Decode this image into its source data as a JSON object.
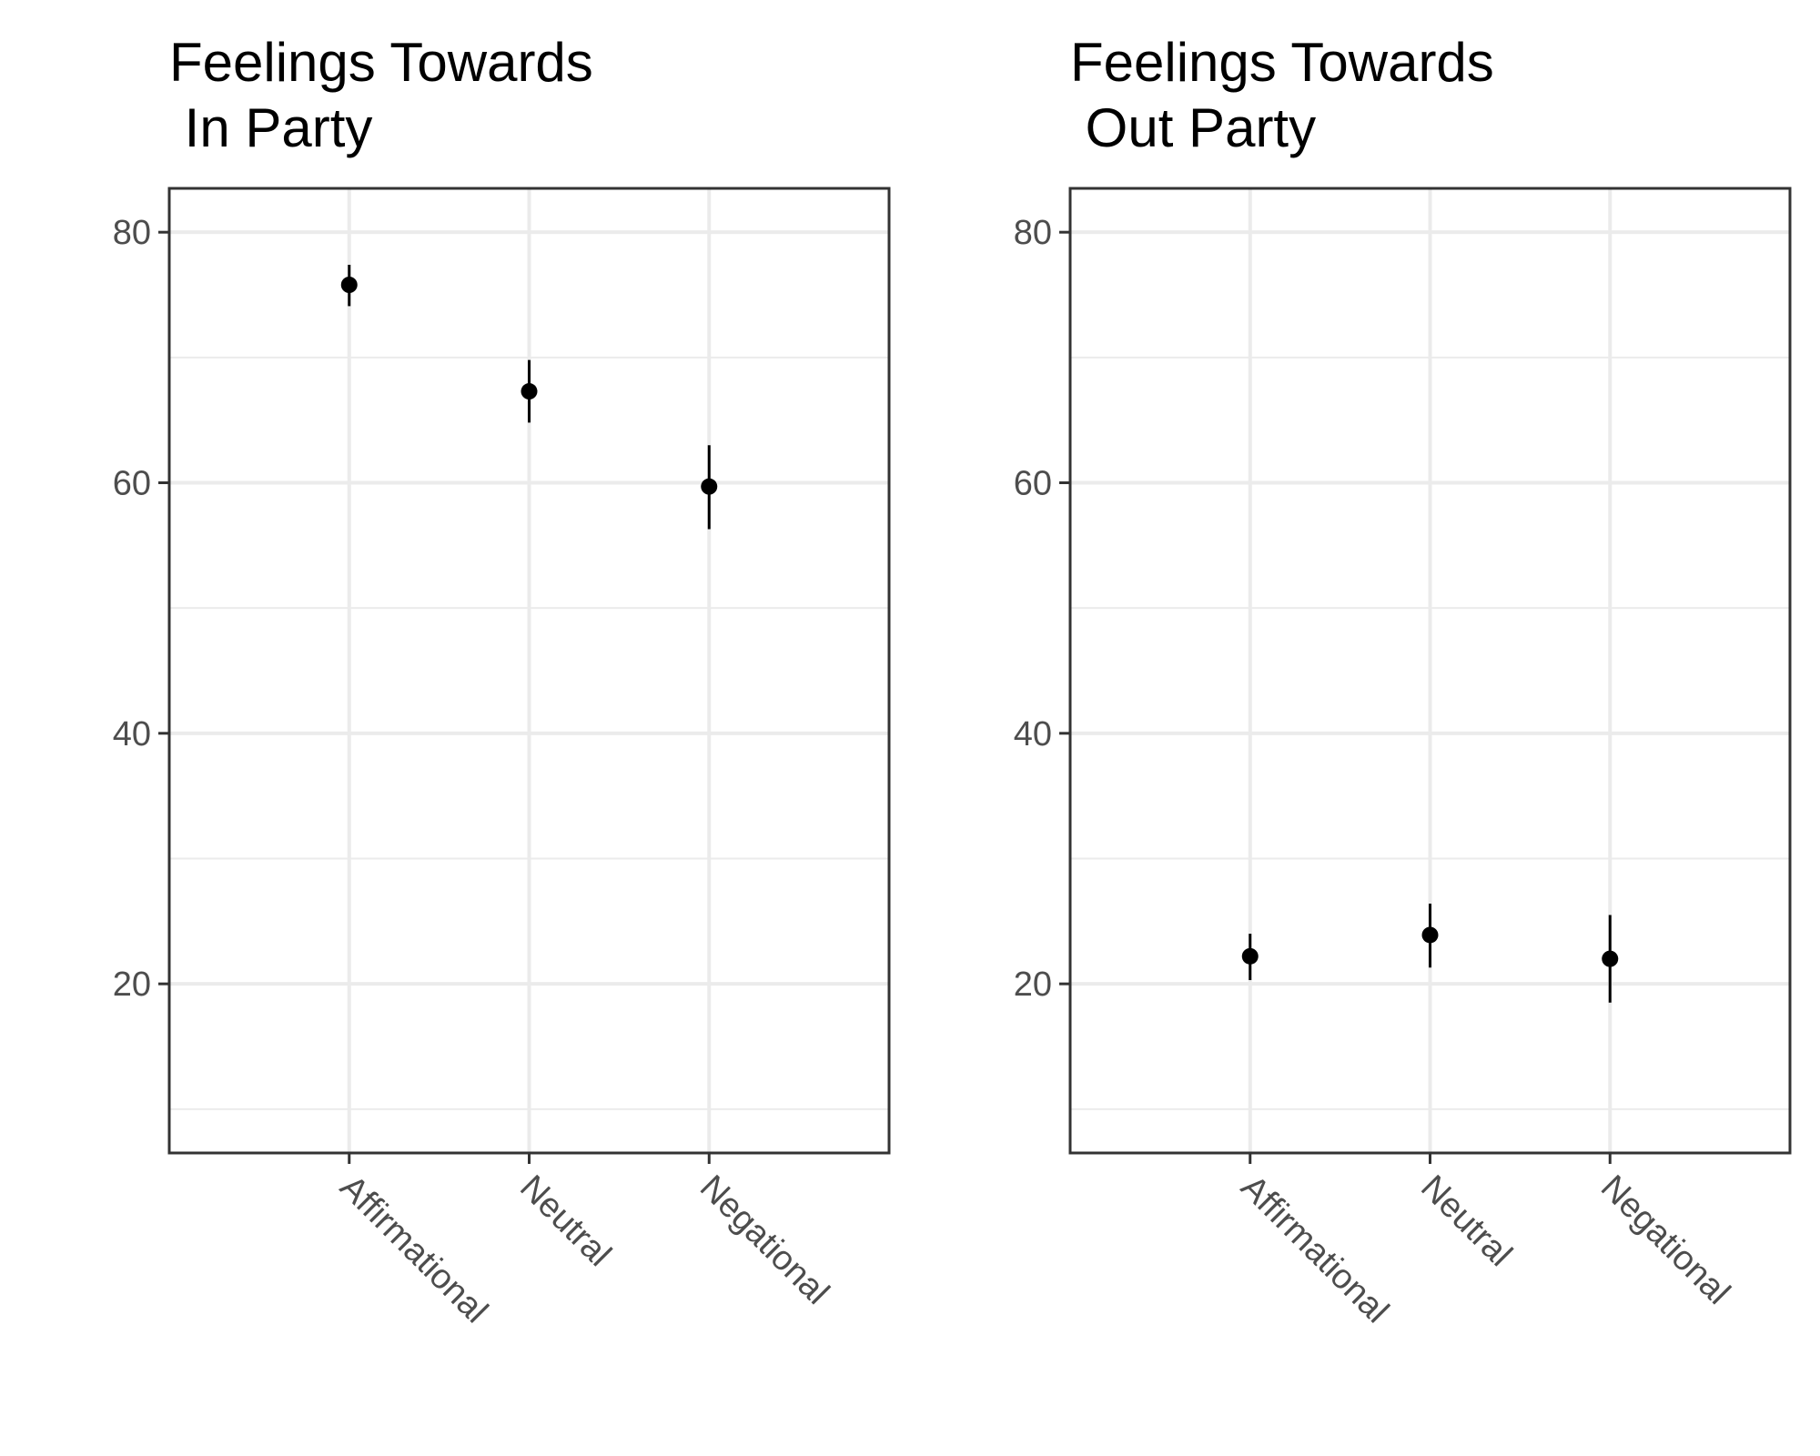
{
  "chart_data": [
    {
      "type": "scatter",
      "title_lines": [
        "Feelings Towards",
        " In Party"
      ],
      "xlabel": "",
      "ylabel": "",
      "categories": [
        "Affirmational",
        "Neutral",
        "Negational"
      ],
      "values": [
        75.8,
        67.3,
        59.7
      ],
      "error_low": [
        74.1,
        64.8,
        56.3
      ],
      "error_high": [
        77.4,
        69.8,
        63.0
      ],
      "ylim": [
        6.5,
        83.5
      ],
      "yticks": [
        20,
        40,
        60,
        80
      ],
      "minor_yticks": [
        10,
        30,
        50,
        70
      ],
      "grid": true,
      "legend": "none"
    },
    {
      "type": "scatter",
      "title_lines": [
        "Feelings Towards",
        " Out Party"
      ],
      "xlabel": "",
      "ylabel": "",
      "categories": [
        "Affirmational",
        "Neutral",
        "Negational"
      ],
      "values": [
        22.2,
        23.9,
        22.0
      ],
      "error_low": [
        20.3,
        21.3,
        18.5
      ],
      "error_high": [
        24.0,
        26.4,
        25.5
      ],
      "ylim": [
        6.5,
        83.5
      ],
      "yticks": [
        20,
        40,
        60,
        80
      ],
      "minor_yticks": [
        10,
        30,
        50,
        70
      ],
      "grid": true,
      "legend": "none"
    }
  ],
  "colors": {
    "point": "#000000",
    "errorbar": "#000000",
    "grid_major": "#ebebeb",
    "grid_minor": "#ebebeb",
    "panel_border": "#333333",
    "tick_text": "#4d4d4d",
    "title_text": "#000000"
  }
}
